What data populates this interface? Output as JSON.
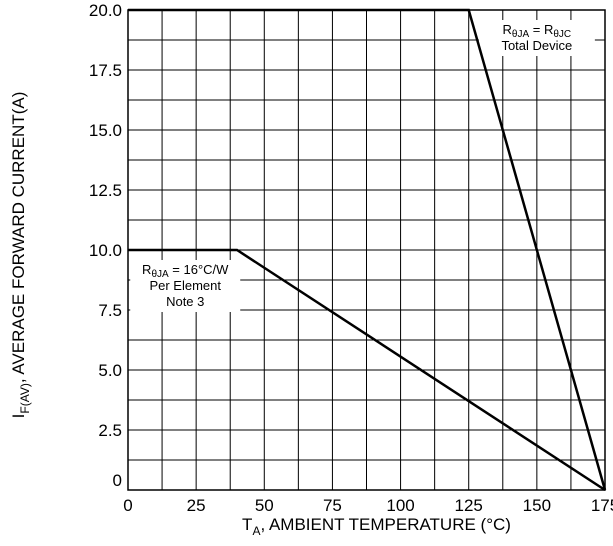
{
  "chart_data": {
    "type": "line",
    "title": "",
    "xlabel": {
      "main": "T",
      "sub": "A",
      "rest": ", AMBIENT TEMPERATURE (°C)"
    },
    "ylabel": {
      "main": "I",
      "sub": "F(AV)",
      "rest": ", AVERAGE FORWARD CURRENT(A)"
    },
    "xlim": [
      0,
      175
    ],
    "ylim": [
      0,
      20
    ],
    "x_ticks": [
      "0",
      "25",
      "50",
      "75",
      "100",
      "125",
      "150",
      "175"
    ],
    "y_ticks": [
      "0",
      "2.5",
      "5.0",
      "7.5",
      "10.0",
      "12.5",
      "15.0",
      "17.5",
      "20.0"
    ],
    "grid": true,
    "series": [
      {
        "x": [
          0,
          125,
          175
        ],
        "y": [
          20,
          20,
          0
        ],
        "color": "#000000"
      },
      {
        "x": [
          0,
          40,
          175
        ],
        "y": [
          10,
          10,
          0
        ],
        "color": "#000000"
      }
    ],
    "annotations": [
      {
        "anchor": [
          150,
          19.0
        ],
        "lines": [
          [
            {
              "t": "R"
            },
            {
              "t": "θJA",
              "sub": true
            },
            {
              "t": " = R"
            },
            {
              "t": "θJC",
              "sub": true
            }
          ],
          [
            {
              "t": "Total Device"
            }
          ]
        ]
      },
      {
        "anchor": [
          21,
          9.0
        ],
        "lines": [
          [
            {
              "t": "R"
            },
            {
              "t": "θJA",
              "sub": true
            },
            {
              "t": " = 16°C/W"
            }
          ],
          [
            {
              "t": "Per Element"
            }
          ],
          [
            {
              "t": "Note 3"
            }
          ]
        ]
      }
    ]
  }
}
